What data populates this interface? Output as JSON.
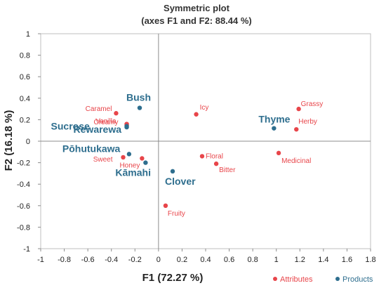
{
  "chart_data": {
    "type": "scatter",
    "title": [
      "Symmetric plot",
      "(axes F1 and F2: 88.44 %)"
    ],
    "xlabel": "F1 (72.27 %)",
    "ylabel": "F2 (16.18 %)",
    "xlim": [
      -1,
      1.8
    ],
    "ylim": [
      -1,
      1
    ],
    "xticks": [
      "-1",
      "-0.8",
      "-0.6",
      "-0.4",
      "-0.2",
      "0",
      "0.2",
      "0.4",
      "0.6",
      "0.8",
      "1",
      "1.2",
      "1.4",
      "1.6",
      "1.8"
    ],
    "yticks": [
      "1",
      "0.8",
      "0.6",
      "0.4",
      "0.2",
      "0",
      "-0.2",
      "-0.4",
      "-0.6",
      "-0.8",
      "-1"
    ],
    "legend_position": "bottom-right",
    "series": [
      {
        "name": "Attributes",
        "color": "#e8454a",
        "points": [
          {
            "label": "Caramel",
            "x": -0.36,
            "y": 0.26
          },
          {
            "label": "Vanilla",
            "x": -0.27,
            "y": 0.16
          },
          {
            "label": "Creamy",
            "x": -0.27,
            "y": 0.15
          },
          {
            "label": "Icy",
            "x": 0.32,
            "y": 0.25
          },
          {
            "label": "Grassy",
            "x": 1.19,
            "y": 0.3
          },
          {
            "label": "Herby",
            "x": 1.17,
            "y": 0.11
          },
          {
            "label": "Medicinal",
            "x": 1.02,
            "y": -0.11
          },
          {
            "label": "Floral",
            "x": 0.37,
            "y": -0.14
          },
          {
            "label": "Bitter",
            "x": 0.49,
            "y": -0.21
          },
          {
            "label": "Sweet",
            "x": -0.3,
            "y": -0.15
          },
          {
            "label": "Honey",
            "x": -0.14,
            "y": -0.16
          },
          {
            "label": "Fruity",
            "x": 0.06,
            "y": -0.6
          }
        ]
      },
      {
        "name": "Products",
        "color": "#2e6e8e",
        "points": [
          {
            "label": "Bush",
            "x": -0.16,
            "y": 0.31
          },
          {
            "label": "Rewarewa",
            "x": -0.27,
            "y": 0.13
          },
          {
            "label": "Sucrose",
            "x": -0.27,
            "y": 0.14
          },
          {
            "label": "Thyme",
            "x": 0.98,
            "y": 0.12
          },
          {
            "label": "Pōhutukawa",
            "x": -0.25,
            "y": -0.12
          },
          {
            "label": "Kāmahi",
            "x": -0.11,
            "y": -0.2
          },
          {
            "label": "Clover",
            "x": 0.12,
            "y": -0.28
          }
        ]
      }
    ]
  }
}
